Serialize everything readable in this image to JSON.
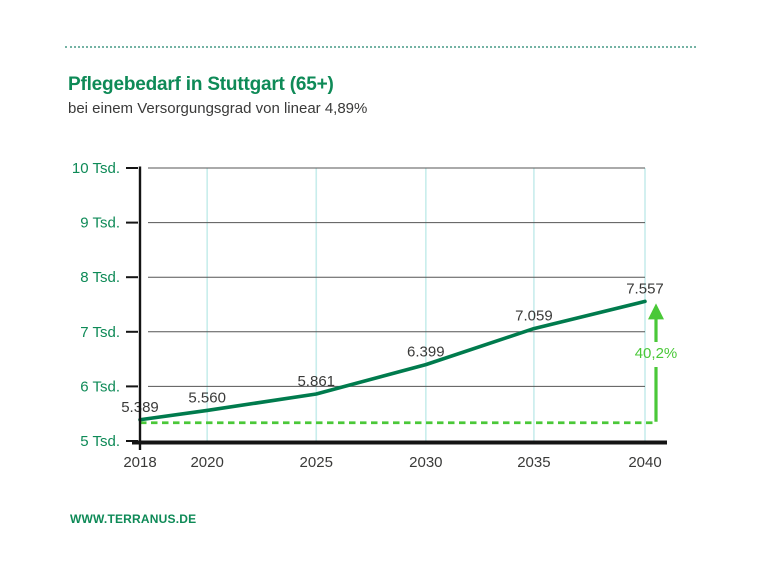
{
  "header": {
    "title": "Pflegebedarf in Stuttgart (65+)",
    "subtitle": "bei einem Versorgungsgrad von linear 4,89%"
  },
  "footer": {
    "link": "WWW.TERRANUS.DE"
  },
  "colors": {
    "brand_green": "#0e8a57",
    "series_line_green": "#007b4d",
    "light_green": "#4ac838",
    "text_dark": "#3a3a39",
    "h_gridline_gray": "#555555",
    "v_gridline_cyan": "#c8edec",
    "axis_black": "#141414",
    "separator_teal": "#74b3a4"
  },
  "chart_data": {
    "type": "line",
    "title": "Pflegebedarf in Stuttgart (65+)",
    "subtitle": "bei einem Versorgungsgrad von linear 4,89%",
    "categories": [
      "2018",
      "2020",
      "2025",
      "2030",
      "2035",
      "2040"
    ],
    "values": [
      5389,
      5560,
      5861,
      6399,
      7059,
      7557
    ],
    "value_labels": [
      "5.389",
      "5.560",
      "5.861",
      "6.399",
      "7.059",
      "7.557"
    ],
    "x_positions_pct": [
      0,
      0.133,
      0.349,
      0.566,
      0.78,
      1
    ],
    "y_ticks": [
      {
        "value": 5000,
        "label": "5 Tsd."
      },
      {
        "value": 6000,
        "label": "6 Tsd."
      },
      {
        "value": 7000,
        "label": "7 Tsd."
      },
      {
        "value": 8000,
        "label": "8 Tsd."
      },
      {
        "value": 9000,
        "label": "9 Tsd."
      },
      {
        "value": 10000,
        "label": "10 Tsd."
      }
    ],
    "ylim": [
      5000,
      10000
    ],
    "grid": true,
    "baseline_dashed_at_value": 5389,
    "annotation": {
      "type": "growth-arrow",
      "percent_label": "40,2%",
      "from_value": 5389,
      "to_value": 7557
    }
  }
}
